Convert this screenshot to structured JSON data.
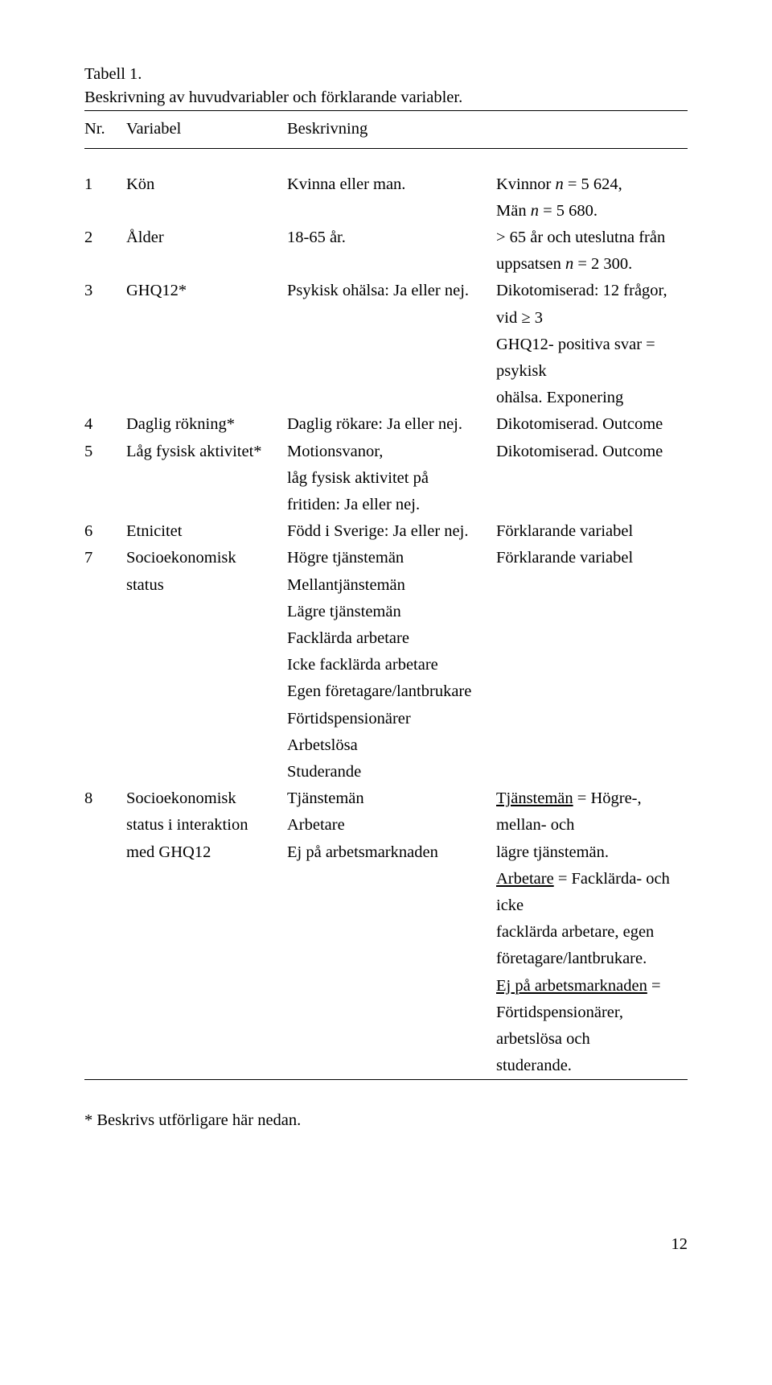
{
  "caption": {
    "line1": "Tabell 1.",
    "line2": "Beskrivning av huvudvariabler och förklarande variabler."
  },
  "header": {
    "nr": "Nr.",
    "variabel": "Variabel",
    "beskrivning": "Beskrivning"
  },
  "rows": [
    {
      "nr": "1",
      "variabel": "Kön",
      "desc": [
        "Kvinna eller man."
      ],
      "note": [
        [
          {
            "t": "Kvinnor "
          },
          {
            "t": "n",
            "i": true
          },
          {
            "t": " = 5 624,"
          }
        ],
        [
          {
            "t": "Män "
          },
          {
            "t": "n",
            "i": true
          },
          {
            "t": " = 5 680."
          }
        ]
      ]
    },
    {
      "nr": "2",
      "variabel": "Ålder",
      "desc": [
        "18-65 år."
      ],
      "note": [
        [
          {
            "t": "> 65 år och uteslutna från"
          }
        ],
        [
          {
            "t": "uppsatsen "
          },
          {
            "t": "n",
            "i": true
          },
          {
            "t": " = 2 300."
          }
        ]
      ]
    },
    {
      "nr": "3",
      "variabel": "GHQ12*",
      "desc": [
        "Psykisk ohälsa: Ja eller nej."
      ],
      "note": [
        [
          {
            "t": "Dikotomiserad: 12 frågor, vid ≥ 3"
          }
        ],
        [
          {
            "t": "GHQ12- positiva svar = psykisk"
          }
        ],
        [
          {
            "t": "ohälsa. Exponering"
          }
        ]
      ]
    },
    {
      "nr": "4",
      "variabel": "Daglig rökning*",
      "desc": [
        "Daglig rökare: Ja eller nej."
      ],
      "note": [
        [
          {
            "t": "Dikotomiserad. Outcome"
          }
        ]
      ]
    },
    {
      "nr": "5",
      "variabel": "Låg fysisk aktivitet*",
      "desc": [
        "Motionsvanor,",
        "låg fysisk aktivitet på",
        "fritiden: Ja eller nej."
      ],
      "note": [
        [
          {
            "t": "Dikotomiserad. Outcome"
          }
        ]
      ]
    },
    {
      "nr": "6",
      "variabel": "Etnicitet",
      "desc": [
        "Född i Sverige: Ja eller nej."
      ],
      "note": [
        [
          {
            "t": "Förklarande variabel"
          }
        ]
      ]
    },
    {
      "nr": "7",
      "variabel": [
        "Socioekonomisk",
        "status"
      ],
      "desc": [
        "Högre tjänstemän",
        "Mellantjänstemän",
        "Lägre tjänstemän",
        "Facklärda arbetare",
        "Icke facklärda arbetare",
        "Egen företagare/lantbrukare",
        "Förtidspensionärer",
        "Arbetslösa",
        "Studerande"
      ],
      "note": [
        [
          {
            "t": "Förklarande variabel"
          }
        ]
      ]
    },
    {
      "nr": "8",
      "variabel": [
        "Socioekonomisk",
        "status i interaktion",
        "med GHQ12"
      ],
      "desc": [
        "Tjänstemän",
        "Arbetare",
        "Ej på arbetsmarknaden"
      ],
      "note": [
        [
          {
            "t": "Tjänstemän",
            "u": true
          },
          {
            "t": " = Högre-, mellan- och"
          }
        ],
        [
          {
            "t": "lägre tjänstemän."
          }
        ],
        [
          {
            "t": "Arbetare",
            "u": true
          },
          {
            "t": " = Facklärda- och icke"
          }
        ],
        [
          {
            "t": "facklärda arbetare, egen"
          }
        ],
        [
          {
            "t": "företagare/lantbrukare."
          }
        ],
        [
          {
            "t": "Ej på arbetsmarknaden",
            "u": true
          },
          {
            "t": " ="
          }
        ],
        [
          {
            "t": "Förtidspensionärer, arbetslösa och"
          }
        ],
        [
          {
            "t": "studerande."
          }
        ]
      ]
    }
  ],
  "footnote": "* Beskrivs utförligare här nedan.",
  "pagenum": "12"
}
